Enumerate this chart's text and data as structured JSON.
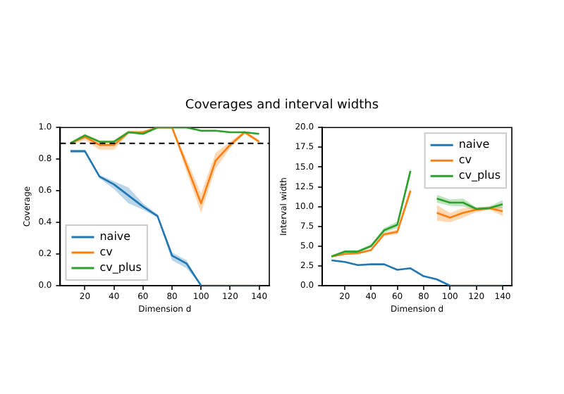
{
  "chart_data": [
    {
      "type": "line",
      "title": "Coverages and interval widths",
      "xlabel": "Dimension d",
      "ylabel": "Coverage",
      "x": [
        10,
        20,
        30,
        40,
        50,
        60,
        70,
        80,
        90,
        100,
        110,
        120,
        130,
        140
      ],
      "xlim": [
        3,
        147
      ],
      "xticks": [
        20,
        40,
        60,
        80,
        100,
        120,
        140
      ],
      "ylim": [
        0,
        1
      ],
      "yticks": [
        {
          "value": 0,
          "label": "0.0"
        },
        0.2,
        0.4,
        0.6,
        0.8,
        {
          "value": 1,
          "label": "1.0"
        }
      ],
      "legend": "bottom left",
      "grid": false,
      "ref_lines": [
        {
          "axis": "y",
          "value": 0.9,
          "color": "#000000",
          "line_style": "dashed"
        }
      ],
      "series": [
        {
          "name": "naive",
          "color": "#1f77b4",
          "values": [
            0.85,
            0.85,
            0.69,
            0.64,
            0.57,
            0.5,
            0.44,
            0.19,
            0.14,
            0,
            0,
            0,
            0,
            0
          ],
          "lower": [
            0.84,
            0.84,
            0.68,
            0.61,
            0.52,
            0.48,
            0.43,
            0.16,
            0.11,
            0,
            0,
            0,
            0,
            0
          ],
          "upper": [
            0.86,
            0.86,
            0.7,
            0.66,
            0.62,
            0.52,
            0.45,
            0.21,
            0.16,
            0,
            0,
            0,
            0,
            0
          ]
        },
        {
          "name": "cv",
          "color": "#ff7f0e",
          "values": [
            0.9,
            0.94,
            0.89,
            0.89,
            0.97,
            0.97,
            1.0,
            1.0,
            0.76,
            0.52,
            0.79,
            0.89,
            0.97,
            0.91
          ],
          "lower": [
            0.89,
            0.92,
            0.86,
            0.86,
            0.96,
            0.96,
            1.0,
            1.0,
            0.72,
            0.46,
            0.74,
            0.87,
            0.96,
            0.9
          ],
          "upper": [
            0.91,
            0.96,
            0.92,
            0.92,
            0.98,
            0.98,
            1.0,
            1.0,
            0.8,
            0.58,
            0.84,
            0.91,
            0.98,
            0.92
          ]
        },
        {
          "name": "cv_plus",
          "color": "#2ca02c",
          "values": [
            0.9,
            0.95,
            0.91,
            0.91,
            0.97,
            0.96,
            1.0,
            1.0,
            1.0,
            0.98,
            0.98,
            0.97,
            0.97,
            0.96
          ]
        }
      ]
    },
    {
      "type": "line",
      "xlabel": "Dimension d",
      "ylabel": "Interval width",
      "x": [
        10,
        20,
        30,
        40,
        50,
        60,
        70,
        80,
        90,
        100,
        110,
        120,
        130,
        140
      ],
      "xlim": [
        3,
        147
      ],
      "xticks": [
        20,
        40,
        60,
        80,
        100,
        120,
        140
      ],
      "ylim": [
        0,
        20
      ],
      "yticks": [
        {
          "value": 0,
          "label": "0.0"
        },
        2.5,
        {
          "value": 5,
          "label": "5.0"
        },
        7.5,
        {
          "value": 10,
          "label": "10.0"
        },
        12.5,
        {
          "value": 15,
          "label": "15.0"
        },
        17.5,
        {
          "value": 20,
          "label": "20.0"
        }
      ],
      "legend": "top right",
      "grid": false,
      "series": [
        {
          "name": "naive",
          "color": "#1f77b4",
          "values": [
            3.2,
            3.0,
            2.6,
            2.7,
            2.7,
            2.0,
            2.2,
            1.2,
            0.8,
            0,
            0,
            0,
            0,
            0
          ]
        },
        {
          "name": "cv",
          "color": "#ff7f0e",
          "values": [
            3.7,
            4.0,
            4.1,
            4.5,
            6.5,
            6.8,
            12.0,
            null,
            9.2,
            8.6,
            9.2,
            9.6,
            9.8,
            9.4
          ],
          "lower": [
            3.6,
            3.9,
            4.0,
            4.4,
            6.3,
            6.5,
            11.5,
            null,
            8.2,
            8.0,
            8.6,
            9.3,
            9.6,
            8.8
          ],
          "upper": [
            3.8,
            4.1,
            4.2,
            4.6,
            6.7,
            7.1,
            12.5,
            null,
            10.2,
            9.2,
            9.8,
            9.9,
            10.0,
            10.0
          ]
        },
        {
          "name": "cv_plus",
          "color": "#2ca02c",
          "values": [
            3.7,
            4.3,
            4.3,
            5.0,
            7.0,
            7.7,
            14.5,
            null,
            11.0,
            10.5,
            10.5,
            9.7,
            9.8,
            10.3
          ],
          "lower": [
            3.6,
            4.1,
            4.1,
            4.8,
            6.7,
            7.3,
            14.0,
            null,
            10.5,
            10.1,
            10.0,
            9.5,
            9.6,
            9.8
          ],
          "upper": [
            3.8,
            4.5,
            4.5,
            5.2,
            7.3,
            8.1,
            15.0,
            null,
            11.5,
            10.9,
            11.0,
            9.9,
            10.0,
            10.8
          ]
        }
      ]
    }
  ]
}
